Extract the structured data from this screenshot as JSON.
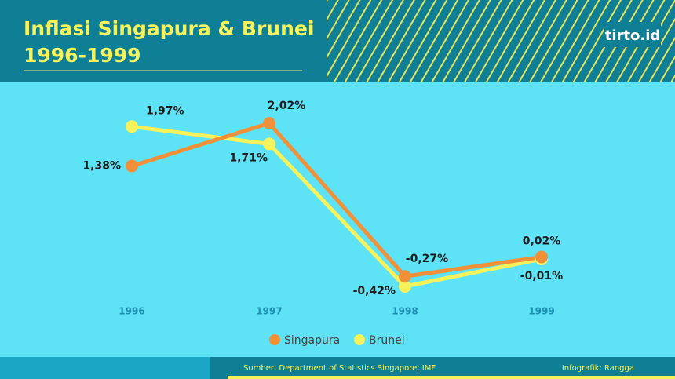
{
  "logo": "tirto.id",
  "chart_data": {
    "type": "line",
    "title": "Inflasi Singapura & Brunei",
    "subtitle": "1996-1999",
    "categories": [
      "1996",
      "1997",
      "1998",
      "1999"
    ],
    "series": [
      {
        "name": "Singapura",
        "color": "#f0913a",
        "values": [
          1.38,
          2.02,
          -0.27,
          0.02
        ],
        "value_labels": [
          "1,38%",
          "2,02%",
          "-0,27%",
          "0,02%"
        ]
      },
      {
        "name": "Brunei",
        "color": "#f5f25c",
        "values": [
          1.97,
          1.71,
          -0.42,
          -0.01
        ],
        "value_labels": [
          "1,97%",
          "1,71%",
          "-0,42%",
          "-0,01%"
        ]
      }
    ],
    "source": "Sumber: Department of Statistics Singapore; IMF",
    "credit": "Infografik: Rangga"
  }
}
